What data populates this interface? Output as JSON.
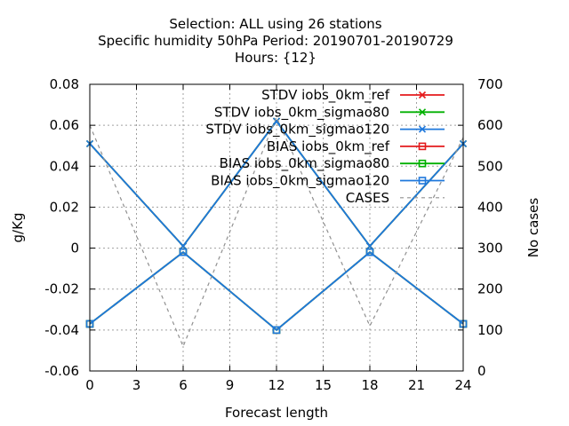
{
  "chart_data": {
    "type": "line",
    "title_lines": [
      "Selection: ALL using    26 stations",
      "Specific humidity 50hPa    Period: 20190701-20190729",
      "Hours: {12}"
    ],
    "xlabel": "Forecast length",
    "ylabel": "g/Kg",
    "y2label": "No cases",
    "xlim": [
      0,
      24
    ],
    "ylim": [
      -0.06,
      0.08
    ],
    "y2lim": [
      0,
      700
    ],
    "xticks": [
      0,
      3,
      6,
      9,
      12,
      15,
      18,
      21,
      24
    ],
    "yticks": [
      -0.06,
      -0.04,
      -0.02,
      0,
      0.02,
      0.04,
      0.06,
      0.08
    ],
    "y2ticks": [
      0,
      100,
      200,
      300,
      400,
      500,
      600,
      700
    ],
    "grid": true,
    "legend_position": "top-right",
    "x": [
      0,
      6,
      12,
      18,
      24
    ],
    "series": [
      {
        "name": "STDV iobs_0km_ref",
        "axis": "y",
        "marker": "x",
        "color": "#e41a1c",
        "values": [
          0.051,
          0.001,
          0.062,
          0.001,
          0.051
        ]
      },
      {
        "name": "STDV iobs_0km_sigmao80",
        "axis": "y",
        "marker": "x",
        "color": "#00b000",
        "values": [
          0.051,
          0.001,
          0.062,
          0.001,
          0.051
        ]
      },
      {
        "name": "STDV iobs_0km_sigmao120",
        "axis": "y",
        "marker": "x",
        "color": "#1e78dc",
        "values": [
          0.051,
          0.001,
          0.062,
          0.001,
          0.051
        ]
      },
      {
        "name": "BIAS iobs_0km_ref",
        "axis": "y",
        "marker": "square",
        "color": "#e41a1c",
        "values": [
          -0.037,
          -0.002,
          -0.04,
          -0.002,
          -0.037
        ]
      },
      {
        "name": "BIAS iobs_0km_sigmao80",
        "axis": "y",
        "marker": "square",
        "color": "#00b000",
        "values": [
          -0.037,
          -0.002,
          -0.04,
          -0.002,
          -0.037
        ]
      },
      {
        "name": "BIAS iobs_0km_sigmao120",
        "axis": "y",
        "marker": "square",
        "color": "#1e78dc",
        "values": [
          -0.037,
          -0.002,
          -0.04,
          -0.002,
          -0.037
        ]
      },
      {
        "name": "CASES",
        "axis": "y2",
        "marker": "none",
        "dash": true,
        "color": "#909090",
        "values": [
          600,
          60,
          620,
          110,
          570
        ]
      }
    ]
  }
}
